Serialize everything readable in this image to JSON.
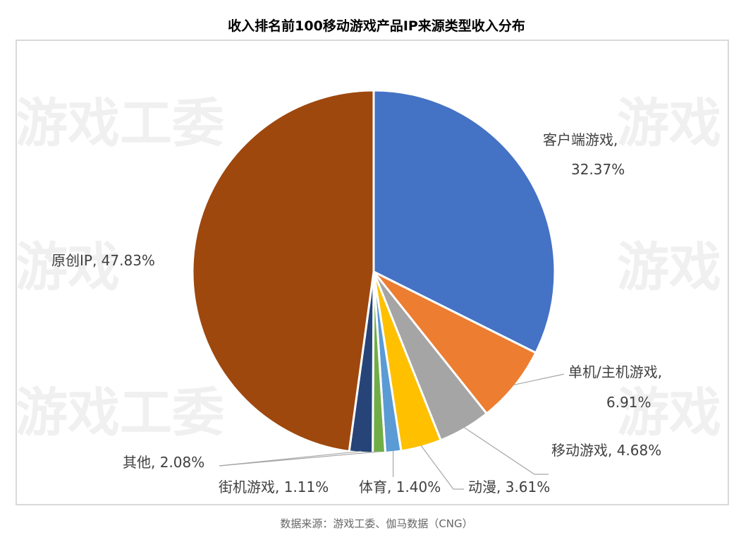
{
  "title": "收入排名前100移动游戏产品IP来源类型收入分布",
  "source": "数据来源：游戏工委、伽马数据（CNG）",
  "watermark": "游戏工委",
  "colors": {
    "client": "#4472c4",
    "standalone": "#ed7d31",
    "mobile": "#a5a5a5",
    "anime": "#ffc000",
    "sports": "#5b9bd5",
    "arcade": "#70ad47",
    "other": "#264478",
    "original": "#9e480e"
  },
  "chart_data": {
    "type": "pie",
    "title": "收入排名前100移动游戏产品IP来源类型收入分布",
    "start_angle_deg": 0,
    "direction": "clockwise",
    "slices": [
      {
        "label": "客户端游戏",
        "value": 32.37,
        "text": "客户端游戏,",
        "pct": "32.37%",
        "color": "#4472c4"
      },
      {
        "label": "单机/主机游戏",
        "value": 6.91,
        "text": "单机/主机游戏,",
        "pct": "6.91%",
        "color": "#ed7d31"
      },
      {
        "label": "移动游戏",
        "value": 4.68,
        "text": "移动游戏, 4.68%",
        "pct": "",
        "color": "#a5a5a5"
      },
      {
        "label": "动漫",
        "value": 3.61,
        "text": "动漫, 3.61%",
        "pct": "",
        "color": "#ffc000"
      },
      {
        "label": "体育",
        "value": 1.4,
        "text": "体育, 1.40%",
        "pct": "",
        "color": "#5b9bd5"
      },
      {
        "label": "街机游戏",
        "value": 1.11,
        "text": "街机游戏, 1.11%",
        "pct": "",
        "color": "#70ad47"
      },
      {
        "label": "其他",
        "value": 2.08,
        "text": "其他, 2.08%",
        "pct": "",
        "color": "#264478"
      },
      {
        "label": "原创IP",
        "value": 47.83,
        "text": "原创IP, 47.83%",
        "pct": "",
        "color": "#9e480e"
      }
    ]
  }
}
